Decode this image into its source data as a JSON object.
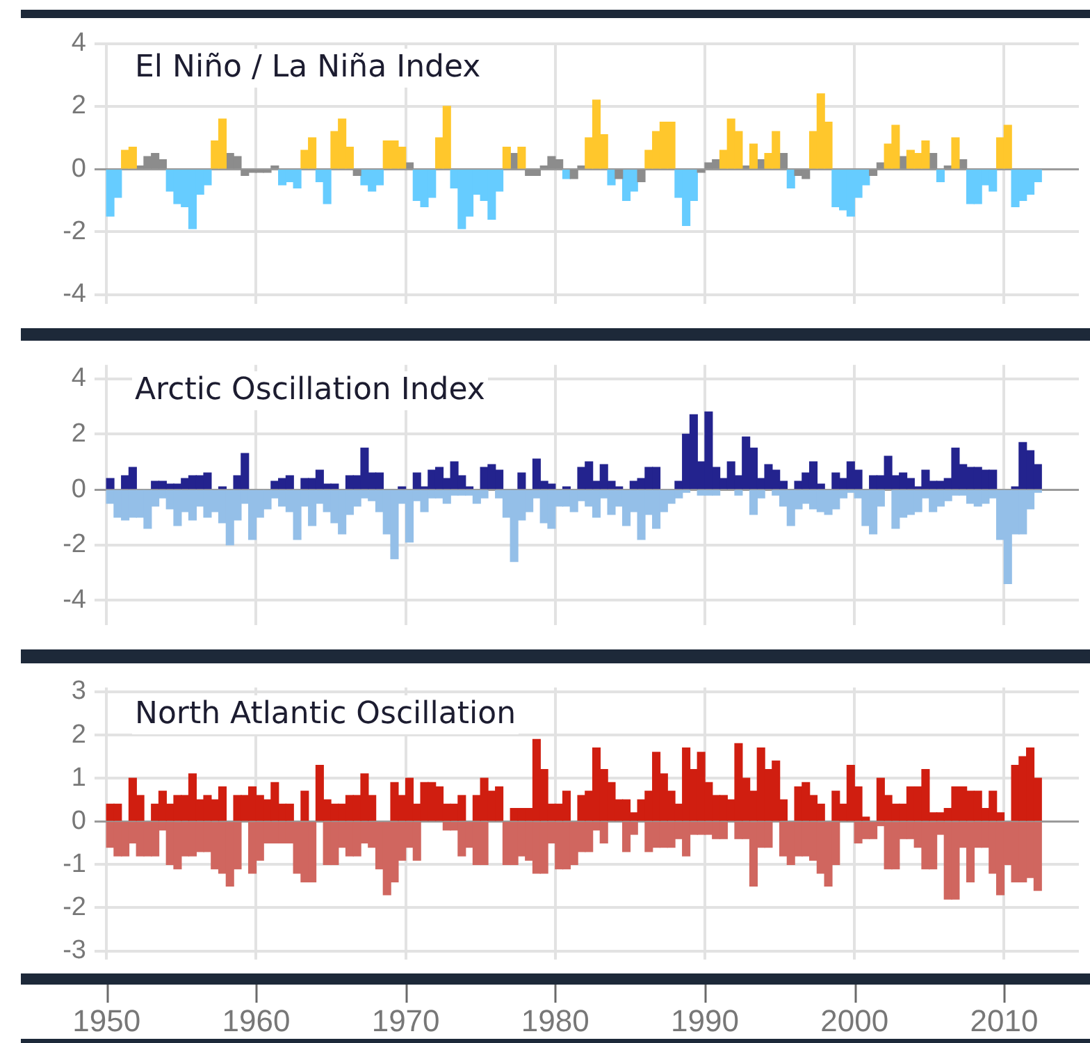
{
  "chart_data": [
    {
      "type": "bar",
      "title": "El Niño / La Niña Index",
      "xlim": [
        1949.2,
        2015
      ],
      "xticks": [
        1950,
        1960,
        1970,
        1980,
        1990,
        2000,
        2010
      ],
      "ylim": [
        -4.3,
        4
      ],
      "yticks": [
        -4,
        -2,
        0,
        2,
        4
      ],
      "grid": true,
      "tick_labels": "y",
      "series": [
        {
          "color": "#ffc72c",
          "x": [
            1951.25,
            1951.75,
            1957.25,
            1957.75,
            1963.25,
            1963.75,
            1965.25,
            1965.75,
            1966.25,
            1968.75,
            1969.25,
            1969.75,
            1972.25,
            1972.75,
            1976.75,
            1977.75,
            1982.25,
            1982.75,
            1983.25,
            1986.25,
            1986.75,
            1987.25,
            1987.75,
            1991.25,
            1991.75,
            1992.25,
            1993.25,
            1994.25,
            1994.75,
            1997.25,
            1997.75,
            1998.25,
            2002.25,
            2002.75,
            2003.75,
            2004.25,
            2004.75,
            2006.75,
            2009.75,
            2010.25
          ],
          "values": [
            0.6,
            0.7,
            0.9,
            1.6,
            0.6,
            1.0,
            1.2,
            1.6,
            0.7,
            0.9,
            0.9,
            0.7,
            1.0,
            2.0,
            0.7,
            0.7,
            1.0,
            2.2,
            1.1,
            0.6,
            1.2,
            1.5,
            1.5,
            0.6,
            1.6,
            1.2,
            0.8,
            0.5,
            1.2,
            1.2,
            2.4,
            1.5,
            0.8,
            1.4,
            0.6,
            0.5,
            0.9,
            1.0,
            1.0,
            1.4
          ]
        },
        {
          "color": "#8c8c8c",
          "x": [
            1952.25,
            1952.75,
            1953.25,
            1953.75,
            1958.25,
            1958.75,
            1959.25,
            1959.75,
            1960.25,
            1960.75,
            1961.25,
            1966.75,
            1970.25,
            1977.25,
            1978.25,
            1978.75,
            1979.25,
            1979.75,
            1980.25,
            1981.25,
            1981.75,
            1984.25,
            1985.75,
            1989.75,
            1990.25,
            1990.75,
            1992.75,
            1993.75,
            1995.25,
            1996.25,
            1996.75,
            2001.25,
            2001.75,
            2003.25,
            2005.25,
            2006.25,
            2007.25
          ],
          "values": [
            0.1,
            0.4,
            0.5,
            0.3,
            0.5,
            0.4,
            -0.2,
            -0.1,
            -0.1,
            -0.1,
            0.1,
            -0.2,
            0.2,
            0.5,
            -0.2,
            -0.2,
            0.1,
            0.4,
            0.3,
            -0.3,
            0.1,
            -0.3,
            -0.4,
            -0.1,
            0.2,
            0.3,
            0.1,
            0.3,
            0.5,
            -0.2,
            -0.3,
            -0.2,
            0.2,
            0.4,
            0.5,
            0.1,
            0.3
          ]
        },
        {
          "color": "#66ccff",
          "x": [
            1950.25,
            1950.75,
            1954.25,
            1954.75,
            1955.25,
            1955.75,
            1956.25,
            1956.75,
            1961.75,
            1962.25,
            1962.75,
            1964.25,
            1964.75,
            1967.25,
            1967.75,
            1968.25,
            1970.75,
            1971.25,
            1971.75,
            1973.25,
            1973.75,
            1974.25,
            1974.75,
            1975.25,
            1975.75,
            1976.25,
            1980.75,
            1983.75,
            1984.75,
            1985.25,
            1988.25,
            1988.75,
            1989.25,
            1995.75,
            1998.75,
            1999.25,
            1999.75,
            2000.25,
            2000.75,
            2005.75,
            2007.75,
            2008.25,
            2008.75,
            2009.25,
            2010.75,
            2011.25,
            2011.75,
            2012.25
          ],
          "values": [
            -1.5,
            -0.9,
            -0.7,
            -1.1,
            -1.2,
            -1.9,
            -0.8,
            -0.5,
            -0.5,
            -0.4,
            -0.6,
            -0.4,
            -1.1,
            -0.5,
            -0.7,
            -0.5,
            -1.0,
            -1.2,
            -0.9,
            -0.6,
            -1.9,
            -1.5,
            -0.8,
            -1.0,
            -1.6,
            -0.7,
            -0.3,
            -0.5,
            -1.0,
            -0.7,
            -0.9,
            -1.8,
            -1.0,
            -0.6,
            -1.2,
            -1.3,
            -1.5,
            -0.9,
            -0.5,
            -0.4,
            -1.1,
            -1.1,
            -0.5,
            -0.7,
            -1.2,
            -1.0,
            -0.8,
            -0.4
          ]
        }
      ]
    },
    {
      "type": "bar",
      "title": "Arctic Oscillation Index",
      "xlim": [
        1949.2,
        2015
      ],
      "xticks": [
        1950,
        1960,
        1970,
        1980,
        1990,
        2000,
        2010
      ],
      "ylim": [
        -4.9,
        4.5
      ],
      "yticks": [
        -4,
        -2,
        0,
        2,
        4
      ],
      "grid": true,
      "tick_labels": "y",
      "stacked": true,
      "x": [
        1950.25,
        1950.75,
        1951.25,
        1951.75,
        1952.25,
        1952.75,
        1953.25,
        1953.75,
        1954.25,
        1954.75,
        1955.25,
        1955.75,
        1956.25,
        1956.75,
        1957.25,
        1957.75,
        1958.25,
        1958.75,
        1959.25,
        1959.75,
        1960.25,
        1960.75,
        1961.25,
        1961.75,
        1962.25,
        1962.75,
        1963.25,
        1963.75,
        1964.25,
        1964.75,
        1965.25,
        1965.75,
        1966.25,
        1966.75,
        1967.25,
        1967.75,
        1968.25,
        1968.75,
        1969.25,
        1969.75,
        1970.25,
        1970.75,
        1971.25,
        1971.75,
        1972.25,
        1972.75,
        1973.25,
        1973.75,
        1974.25,
        1974.75,
        1975.25,
        1975.75,
        1976.25,
        1976.75,
        1977.25,
        1977.75,
        1978.25,
        1978.75,
        1979.25,
        1979.75,
        1980.25,
        1980.75,
        1981.25,
        1981.75,
        1982.25,
        1982.75,
        1983.25,
        1983.75,
        1984.25,
        1984.75,
        1985.25,
        1985.75,
        1986.25,
        1986.75,
        1987.25,
        1987.75,
        1988.25,
        1988.75,
        1989.25,
        1989.75,
        1990.25,
        1990.75,
        1991.25,
        1991.75,
        1992.25,
        1992.75,
        1993.25,
        1993.75,
        1994.25,
        1994.75,
        1995.25,
        1995.75,
        1996.25,
        1996.75,
        1997.25,
        1997.75,
        1998.25,
        1998.75,
        1999.25,
        1999.75,
        2000.25,
        2000.75,
        2001.25,
        2001.75,
        2002.25,
        2002.75,
        2003.25,
        2003.75,
        2004.25,
        2004.75,
        2005.25,
        2005.75,
        2006.25,
        2006.75,
        2007.25,
        2007.75,
        2008.25,
        2008.75,
        2009.25,
        2009.75,
        2010.25,
        2010.75,
        2011.25,
        2011.75,
        2012.25
      ],
      "series": [
        {
          "color": "#23238e",
          "values": [
            0.4,
            null,
            0.5,
            0.8,
            null,
            null,
            0.3,
            0.3,
            0.2,
            0.2,
            0.4,
            0.5,
            0.5,
            0.6,
            null,
            0.1,
            null,
            0.5,
            1.3,
            null,
            null,
            null,
            0.3,
            0.4,
            0.5,
            null,
            0.4,
            0.4,
            0.7,
            0.2,
            0.2,
            null,
            0.5,
            0.5,
            1.5,
            0.6,
            0.6,
            null,
            null,
            0.1,
            null,
            0.6,
            0.1,
            0.7,
            0.8,
            0.4,
            1.0,
            0.5,
            0.1,
            null,
            0.8,
            0.9,
            0.7,
            null,
            null,
            0.6,
            null,
            1.1,
            0.3,
            0.2,
            null,
            0.1,
            null,
            0.8,
            1.0,
            0.3,
            0.9,
            0.3,
            0.1,
            null,
            0.3,
            0.4,
            0.8,
            0.8,
            null,
            null,
            0.3,
            2.0,
            2.7,
            1.0,
            2.8,
            0.8,
            0.4,
            1.0,
            0.5,
            1.9,
            1.5,
            0.4,
            0.9,
            0.7,
            0.3,
            null,
            0.3,
            0.6,
            1.0,
            0.2,
            null,
            0.6,
            0.4,
            1.0,
            0.7,
            null,
            0.5,
            0.5,
            1.2,
            0.5,
            0.6,
            0.4,
            0.1,
            0.7,
            0.3,
            0.3,
            0.4,
            1.5,
            0.9,
            0.8,
            0.8,
            0.7,
            0.7,
            null,
            null,
            0.1,
            1.7,
            1.4,
            0.9
          ]
        },
        {
          "color": "#94bfe8",
          "values": [
            -0.5,
            -1.0,
            -1.1,
            -1.0,
            -1.0,
            -1.4,
            -0.6,
            -0.3,
            -0.7,
            -1.3,
            -0.8,
            -1.1,
            -0.6,
            -1.0,
            -0.8,
            -1.2,
            -2.0,
            -1.1,
            -0.5,
            -1.8,
            -1.0,
            -0.7,
            -0.3,
            -0.6,
            -0.8,
            -1.8,
            -0.6,
            -1.3,
            -0.5,
            -0.8,
            -1.2,
            -1.6,
            -0.9,
            -0.6,
            -0.3,
            -0.4,
            -0.8,
            -1.6,
            -2.5,
            -0.5,
            -1.9,
            -0.4,
            -0.8,
            -0.3,
            -0.3,
            -0.5,
            -0.2,
            -0.2,
            -0.2,
            -0.5,
            -0.3,
            null,
            -0.3,
            -1.0,
            -2.6,
            -1.1,
            -0.8,
            -0.3,
            -1.2,
            -1.4,
            -0.6,
            -0.6,
            -0.8,
            -0.4,
            -0.6,
            -1.0,
            -0.3,
            -0.9,
            -0.6,
            -1.3,
            -0.8,
            -1.8,
            -0.9,
            -1.4,
            -0.8,
            -0.5,
            -0.3,
            -0.1,
            null,
            -0.2,
            -0.2,
            -0.2,
            null,
            null,
            -0.2,
            null,
            -0.9,
            -0.3,
            null,
            -0.2,
            -0.6,
            -1.3,
            -0.7,
            -0.5,
            -0.7,
            -0.8,
            -0.9,
            -0.7,
            -0.3,
            -0.1,
            -0.3,
            -1.3,
            -1.6,
            -0.6,
            null,
            -1.4,
            -1.0,
            -0.9,
            -0.8,
            -0.3,
            -0.8,
            -0.6,
            -0.4,
            -0.2,
            -0.2,
            -0.5,
            -0.6,
            -0.5,
            -0.3,
            -1.8,
            -3.4,
            -1.6,
            -1.6,
            -0.7,
            -0.1
          ]
        }
      ]
    },
    {
      "type": "bar",
      "title": "North Atlantic Oscillation",
      "xlim": [
        1949.2,
        2015
      ],
      "xticks": [
        1950,
        1960,
        1970,
        1980,
        1990,
        2000,
        2010
      ],
      "ylim": [
        -3.2,
        3.1
      ],
      "yticks": [
        -3,
        -2,
        -1,
        0,
        1,
        2,
        3
      ],
      "grid": true,
      "stacked": true,
      "x": [
        1950.25,
        1950.75,
        1951.25,
        1951.75,
        1952.25,
        1952.75,
        1953.25,
        1953.75,
        1954.25,
        1954.75,
        1955.25,
        1955.75,
        1956.25,
        1956.75,
        1957.25,
        1957.75,
        1958.25,
        1958.75,
        1959.25,
        1959.75,
        1960.25,
        1960.75,
        1961.25,
        1961.75,
        1962.25,
        1962.75,
        1963.25,
        1963.75,
        1964.25,
        1964.75,
        1965.25,
        1965.75,
        1966.25,
        1966.75,
        1967.25,
        1967.75,
        1968.25,
        1968.75,
        1969.25,
        1969.75,
        1970.25,
        1970.75,
        1971.25,
        1971.75,
        1972.25,
        1972.75,
        1973.25,
        1973.75,
        1974.25,
        1974.75,
        1975.25,
        1975.75,
        1976.25,
        1976.75,
        1977.25,
        1977.75,
        1978.25,
        1978.75,
        1979.25,
        1979.75,
        1980.25,
        1980.75,
        1981.25,
        1981.75,
        1982.25,
        1982.75,
        1983.25,
        1983.75,
        1984.25,
        1984.75,
        1985.25,
        1985.75,
        1986.25,
        1986.75,
        1987.25,
        1987.75,
        1988.25,
        1988.75,
        1989.25,
        1989.75,
        1990.25,
        1990.75,
        1991.25,
        1991.75,
        1992.25,
        1992.75,
        1993.25,
        1993.75,
        1994.25,
        1994.75,
        1995.25,
        1995.75,
        1996.25,
        1996.75,
        1997.25,
        1997.75,
        1998.25,
        1998.75,
        1999.25,
        1999.75,
        2000.25,
        2000.75,
        2001.25,
        2001.75,
        2002.25,
        2002.75,
        2003.25,
        2003.75,
        2004.25,
        2004.75,
        2005.25,
        2005.75,
        2006.25,
        2006.75,
        2007.25,
        2007.75,
        2008.25,
        2008.75,
        2009.25,
        2009.75,
        2010.25,
        2010.75,
        2011.25,
        2011.75,
        2012.25
      ],
      "series": [
        {
          "color": "#d01e10",
          "values": [
            0.4,
            0.4,
            null,
            1.0,
            0.6,
            null,
            0.4,
            0.7,
            0.4,
            0.6,
            0.6,
            1.1,
            0.5,
            0.6,
            0.5,
            0.8,
            null,
            0.6,
            0.6,
            0.8,
            0.6,
            0.5,
            0.9,
            0.4,
            0.4,
            null,
            0.7,
            null,
            1.3,
            0.5,
            0.4,
            0.4,
            0.6,
            0.6,
            1.1,
            0.6,
            null,
            null,
            0.9,
            0.6,
            1.0,
            0.4,
            0.9,
            0.9,
            0.8,
            0.4,
            0.4,
            0.6,
            null,
            0.6,
            1.0,
            0.7,
            0.8,
            null,
            0.3,
            0.3,
            0.3,
            1.9,
            1.2,
            0.4,
            0.4,
            0.7,
            null,
            0.6,
            0.7,
            1.7,
            1.2,
            0.9,
            0.5,
            0.5,
            0.2,
            0.5,
            0.7,
            1.6,
            1.1,
            0.7,
            0.4,
            1.7,
            1.2,
            1.6,
            0.9,
            0.6,
            0.6,
            0.5,
            1.8,
            1.0,
            0.7,
            1.7,
            1.2,
            1.4,
            0.5,
            null,
            0.8,
            0.9,
            0.6,
            0.4,
            null,
            0.7,
            0.4,
            1.3,
            0.8,
            0.1,
            null,
            1.0,
            0.6,
            0.4,
            0.4,
            0.8,
            0.8,
            1.2,
            0.2,
            0.2,
            0.3,
            0.8,
            0.8,
            0.7,
            0.7,
            0.3,
            0.7,
            0.2,
            null,
            1.3,
            1.5,
            1.7,
            1.0
          ]
        },
        {
          "color": "#d0665f",
          "values": [
            -0.6,
            -0.8,
            -0.8,
            -0.5,
            -0.8,
            -0.8,
            -0.8,
            -0.2,
            -1.0,
            -1.1,
            -0.8,
            -0.8,
            -0.7,
            -0.7,
            -1.1,
            -1.2,
            -1.5,
            -1.1,
            null,
            -1.2,
            -0.9,
            -0.5,
            -0.5,
            -0.5,
            -0.5,
            -1.2,
            -1.4,
            -1.4,
            null,
            -1.0,
            -1.0,
            -0.6,
            -0.8,
            -0.8,
            -0.5,
            -0.6,
            -1.1,
            -1.7,
            -1.4,
            -0.9,
            -0.6,
            -0.9,
            null,
            null,
            null,
            -0.2,
            -0.2,
            -0.8,
            -0.6,
            -1.0,
            -1.0,
            null,
            null,
            -1.0,
            -1.0,
            -0.8,
            -0.9,
            -1.2,
            -1.2,
            -0.5,
            -1.1,
            -1.1,
            -1.0,
            -0.7,
            -0.7,
            -0.2,
            -0.5,
            null,
            null,
            -0.7,
            -0.3,
            null,
            -0.7,
            -0.6,
            -0.6,
            -0.6,
            -0.4,
            -0.8,
            -0.3,
            -0.3,
            -0.3,
            -0.4,
            -0.4,
            null,
            -0.4,
            -0.4,
            -1.5,
            -0.6,
            -0.6,
            null,
            -0.8,
            -1.0,
            -0.8,
            -0.8,
            -0.9,
            -1.2,
            -1.5,
            -1.0,
            null,
            null,
            -0.5,
            -0.4,
            -0.4,
            -0.1,
            -1.1,
            -1.1,
            -0.4,
            -0.4,
            -0.6,
            -1.1,
            -1.1,
            -0.3,
            -1.8,
            -1.8,
            -0.6,
            -1.4,
            -0.6,
            -0.6,
            -1.2,
            -1.7,
            -1.0,
            -1.4,
            -1.4,
            -1.3,
            -1.6
          ]
        }
      ]
    }
  ]
}
